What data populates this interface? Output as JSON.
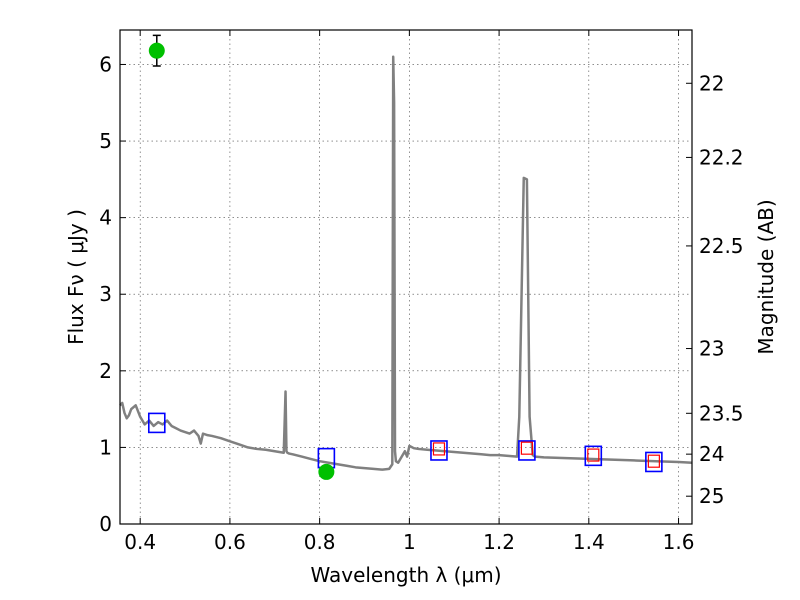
{
  "chart_data": {
    "type": "line",
    "title": "",
    "xlabel": "Wavelength  λ (μm)",
    "ylabel": "Flux  Fν  ( μJy )",
    "ylabel_right": "Magnitude (AB)",
    "xlim": [
      0.355,
      1.63
    ],
    "ylim": [
      0,
      6.45
    ],
    "grid": true,
    "x_ticks": [
      {
        "value": 0.4,
        "label": "0.4"
      },
      {
        "value": 0.6,
        "label": "0.6"
      },
      {
        "value": 0.8,
        "label": "0.8"
      },
      {
        "value": 1.0,
        "label": "1"
      },
      {
        "value": 1.2,
        "label": "1.2"
      },
      {
        "value": 1.4,
        "label": "1.4"
      },
      {
        "value": 1.6,
        "label": "1.6"
      }
    ],
    "y_ticks": [
      {
        "value": 0,
        "label": "0"
      },
      {
        "value": 1,
        "label": "1"
      },
      {
        "value": 2,
        "label": "2"
      },
      {
        "value": 3,
        "label": "3"
      },
      {
        "value": 4,
        "label": "4"
      },
      {
        "value": 5,
        "label": "5"
      },
      {
        "value": 6,
        "label": "6"
      }
    ],
    "right_ticks": [
      {
        "mag": 22,
        "label": "22"
      },
      {
        "mag": 22.2,
        "label": "22.2"
      },
      {
        "mag": 22.5,
        "label": "22.5"
      },
      {
        "mag": 23,
        "label": "23"
      },
      {
        "mag": 23.5,
        "label": "23.5"
      },
      {
        "mag": 24,
        "label": "24"
      },
      {
        "mag": 25,
        "label": "25"
      }
    ],
    "model_spectrum": {
      "color": "#808080",
      "x": [
        0.355,
        0.36,
        0.365,
        0.37,
        0.375,
        0.38,
        0.39,
        0.4,
        0.41,
        0.42,
        0.43,
        0.44,
        0.45,
        0.46,
        0.47,
        0.48,
        0.49,
        0.5,
        0.51,
        0.52,
        0.53,
        0.535,
        0.54,
        0.55,
        0.56,
        0.58,
        0.6,
        0.62,
        0.64,
        0.66,
        0.68,
        0.7,
        0.72,
        0.724,
        0.726,
        0.728,
        0.732,
        0.74,
        0.76,
        0.78,
        0.8,
        0.82,
        0.84,
        0.86,
        0.88,
        0.9,
        0.92,
        0.94,
        0.955,
        0.962,
        0.964,
        0.966,
        0.968,
        0.97,
        0.975,
        0.98,
        0.99,
        0.995,
        1.0,
        1.01,
        1.02,
        1.04,
        1.06,
        1.08,
        1.1,
        1.12,
        1.14,
        1.16,
        1.18,
        1.2,
        1.22,
        1.24,
        1.245,
        1.255,
        1.262,
        1.268,
        1.275,
        1.28,
        1.3,
        1.35,
        1.4,
        1.45,
        1.5,
        1.55,
        1.6,
        1.63
      ],
      "y": [
        1.55,
        1.58,
        1.45,
        1.38,
        1.42,
        1.5,
        1.55,
        1.4,
        1.3,
        1.35,
        1.28,
        1.33,
        1.3,
        1.35,
        1.28,
        1.25,
        1.22,
        1.2,
        1.18,
        1.22,
        1.15,
        1.05,
        1.18,
        1.16,
        1.15,
        1.12,
        1.08,
        1.04,
        1.0,
        0.98,
        0.97,
        0.95,
        0.93,
        1.73,
        0.95,
        0.93,
        0.92,
        0.91,
        0.88,
        0.85,
        0.82,
        0.8,
        0.78,
        0.76,
        0.74,
        0.73,
        0.72,
        0.71,
        0.72,
        0.78,
        6.1,
        5.5,
        0.95,
        0.82,
        0.8,
        0.85,
        0.95,
        0.88,
        1.02,
        0.99,
        0.98,
        0.97,
        0.96,
        0.95,
        0.94,
        0.93,
        0.92,
        0.91,
        0.9,
        0.9,
        0.89,
        0.88,
        1.4,
        4.52,
        4.5,
        1.4,
        0.9,
        0.88,
        0.87,
        0.86,
        0.85,
        0.84,
        0.83,
        0.82,
        0.81,
        0.8
      ]
    },
    "model_photometry": {
      "color": "#0000ff",
      "x": [
        0.437,
        0.815,
        1.066,
        1.262,
        1.41,
        1.545
      ],
      "y": [
        1.32,
        0.86,
        0.96,
        0.96,
        0.89,
        0.81
      ]
    },
    "detections": {
      "color": "#ff0000",
      "x": [
        1.066,
        1.262,
        1.41,
        1.545
      ],
      "y": [
        0.98,
        0.99,
        0.9,
        0.82
      ]
    },
    "photometry_points": {
      "color": "#00c000",
      "x": [
        0.437,
        0.815
      ],
      "y": [
        6.18,
        0.68
      ],
      "yerr": [
        0.2,
        0.07
      ]
    }
  }
}
